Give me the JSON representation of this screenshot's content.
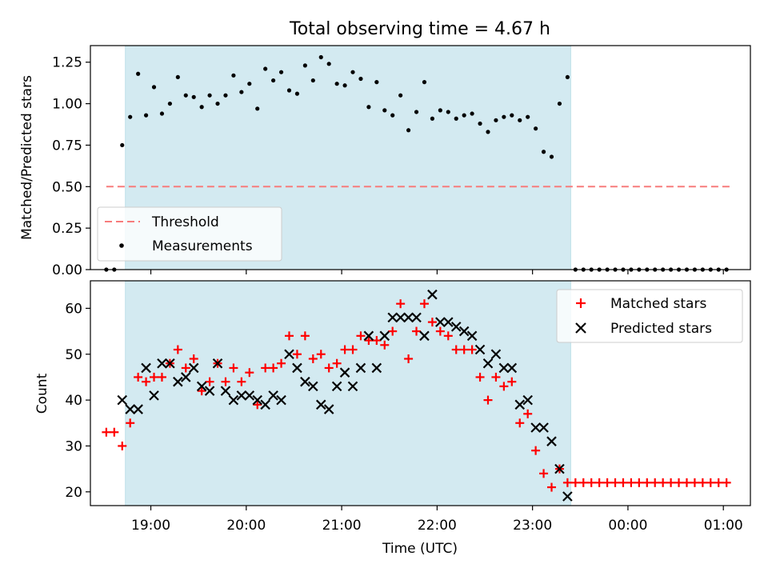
{
  "chart_data": [
    {
      "type": "scatter",
      "title": "Total observing time = 4.67 h",
      "ylabel": "Matched/Predicted stars",
      "xlabel": "",
      "ylim": [
        0,
        1.35
      ],
      "xlim": [
        "18:22",
        "01:17"
      ],
      "yticks": [
        "0.00",
        "0.25",
        "0.50",
        "0.75",
        "1.00",
        "1.25"
      ],
      "shaded_region": [
        "18:44",
        "23:24"
      ],
      "shade_color": "#d3eaf1",
      "threshold": {
        "name": "Threshold",
        "y": 0.5,
        "x": [
          "18:32",
          "01:05"
        ],
        "color": "#f77c7c"
      },
      "legend_position": "lower-left",
      "legend": [
        "Threshold",
        "Measurements"
      ],
      "series": [
        {
          "name": "Measurements",
          "marker": "dot",
          "color": "#000000",
          "x": [
            "18:32",
            "18:37",
            "18:42",
            "18:47",
            "18:52",
            "18:57",
            "19:02",
            "19:07",
            "19:12",
            "19:17",
            "19:22",
            "19:27",
            "19:32",
            "19:37",
            "19:42",
            "19:47",
            "19:52",
            "19:57",
            "20:02",
            "20:07",
            "20:12",
            "20:17",
            "20:22",
            "20:27",
            "20:32",
            "20:37",
            "20:42",
            "20:47",
            "20:52",
            "20:57",
            "21:02",
            "21:07",
            "21:12",
            "21:17",
            "21:22",
            "21:27",
            "21:32",
            "21:37",
            "21:42",
            "21:47",
            "21:52",
            "21:57",
            "22:02",
            "22:07",
            "22:12",
            "22:17",
            "22:22",
            "22:27",
            "22:32",
            "22:37",
            "22:42",
            "22:47",
            "22:52",
            "22:57",
            "23:02",
            "23:07",
            "23:12",
            "23:17",
            "23:22",
            "23:27",
            "23:32",
            "23:37",
            "23:42",
            "23:47",
            "23:52",
            "23:57",
            "00:02",
            "00:07",
            "00:12",
            "00:17",
            "00:22",
            "00:27",
            "00:32",
            "00:37",
            "00:42",
            "00:47",
            "00:52",
            "00:57",
            "01:02"
          ],
          "y": [
            0.0,
            0.0,
            0.75,
            0.92,
            1.18,
            0.93,
            1.1,
            0.94,
            1.0,
            1.16,
            1.05,
            1.04,
            0.98,
            1.05,
            1.0,
            1.05,
            1.17,
            1.07,
            1.12,
            0.97,
            1.21,
            1.14,
            1.19,
            1.08,
            1.06,
            1.23,
            1.14,
            1.28,
            1.24,
            1.12,
            1.11,
            1.19,
            1.15,
            0.98,
            1.13,
            0.96,
            0.93,
            1.05,
            0.84,
            0.95,
            1.13,
            0.91,
            0.96,
            0.95,
            0.91,
            0.93,
            0.94,
            0.88,
            0.83,
            0.9,
            0.92,
            0.93,
            0.9,
            0.92,
            0.85,
            0.71,
            0.68,
            1.0,
            1.16,
            0.0,
            0.0,
            0.0,
            0.0,
            0.0,
            0.0,
            0.0,
            0.0,
            0.0,
            0.0,
            0.0,
            0.0,
            0.0,
            0.0,
            0.0,
            0.0,
            0.0,
            0.0,
            0.0,
            0.0
          ]
        }
      ]
    },
    {
      "type": "scatter",
      "title": "",
      "ylabel": "Count",
      "xlabel": "Time (UTC)",
      "ylim": [
        17,
        66
      ],
      "xlim": [
        "18:22",
        "01:17"
      ],
      "yticks": [
        "20",
        "30",
        "40",
        "50",
        "60"
      ],
      "xticks": [
        "19:00",
        "20:00",
        "21:00",
        "22:00",
        "23:00",
        "00:00",
        "01:00"
      ],
      "shaded_region": [
        "18:44",
        "23:24"
      ],
      "shade_color": "#d3eaf1",
      "legend_position": "upper-right",
      "legend": [
        "Matched stars",
        "Predicted stars"
      ],
      "series": [
        {
          "name": "Matched stars",
          "marker": "plus",
          "color": "#ff0000",
          "x": [
            "18:32",
            "18:37",
            "18:42",
            "18:47",
            "18:52",
            "18:57",
            "19:02",
            "19:07",
            "19:12",
            "19:17",
            "19:22",
            "19:27",
            "19:32",
            "19:37",
            "19:42",
            "19:47",
            "19:52",
            "19:57",
            "20:02",
            "20:07",
            "20:12",
            "20:17",
            "20:22",
            "20:27",
            "20:32",
            "20:37",
            "20:42",
            "20:47",
            "20:52",
            "20:57",
            "21:02",
            "21:07",
            "21:12",
            "21:17",
            "21:22",
            "21:27",
            "21:32",
            "21:37",
            "21:42",
            "21:47",
            "21:52",
            "21:57",
            "22:02",
            "22:07",
            "22:12",
            "22:17",
            "22:22",
            "22:27",
            "22:32",
            "22:37",
            "22:42",
            "22:47",
            "22:52",
            "22:57",
            "23:02",
            "23:07",
            "23:12",
            "23:17",
            "23:22",
            "23:27",
            "23:32",
            "23:37",
            "23:42",
            "23:47",
            "23:52",
            "23:57",
            "00:02",
            "00:07",
            "00:12",
            "00:17",
            "00:22",
            "00:27",
            "00:32",
            "00:37",
            "00:42",
            "00:47",
            "00:52",
            "00:57",
            "01:02"
          ],
          "y": [
            33,
            33,
            30,
            35,
            45,
            44,
            45,
            45,
            48,
            51,
            47,
            49,
            42,
            44,
            48,
            44,
            47,
            44,
            46,
            39,
            47,
            47,
            48,
            54,
            50,
            54,
            49,
            50,
            47,
            48,
            51,
            51,
            54,
            53,
            53,
            52,
            55,
            61,
            49,
            55,
            61,
            57,
            55,
            54,
            51,
            51,
            51,
            45,
            40,
            45,
            43,
            44,
            35,
            37,
            29,
            24,
            21,
            25,
            22,
            22,
            22,
            22,
            22,
            22,
            22,
            22,
            22,
            22,
            22,
            22,
            22,
            22,
            22,
            22,
            22,
            22,
            22,
            22,
            22
          ]
        },
        {
          "name": "Predicted stars",
          "marker": "x",
          "color": "#000000",
          "x": [
            "18:42",
            "18:47",
            "18:52",
            "18:57",
            "19:02",
            "19:07",
            "19:12",
            "19:17",
            "19:22",
            "19:27",
            "19:32",
            "19:37",
            "19:42",
            "19:47",
            "19:52",
            "19:57",
            "20:02",
            "20:07",
            "20:12",
            "20:17",
            "20:22",
            "20:27",
            "20:32",
            "20:37",
            "20:42",
            "20:47",
            "20:52",
            "20:57",
            "21:02",
            "21:07",
            "21:12",
            "21:17",
            "21:22",
            "21:27",
            "21:32",
            "21:37",
            "21:42",
            "21:47",
            "21:52",
            "21:57",
            "22:02",
            "22:07",
            "22:12",
            "22:17",
            "22:22",
            "22:27",
            "22:32",
            "22:37",
            "22:42",
            "22:47",
            "22:52",
            "22:57",
            "23:02",
            "23:07",
            "23:12",
            "23:17",
            "23:22"
          ],
          "y": [
            40,
            38,
            38,
            47,
            41,
            48,
            48,
            44,
            45,
            47,
            43,
            42,
            48,
            42,
            40,
            41,
            41,
            40,
            39,
            41,
            40,
            50,
            47,
            44,
            43,
            39,
            38,
            43,
            46,
            43,
            47,
            54,
            47,
            54,
            58,
            58,
            58,
            58,
            54,
            63,
            57,
            57,
            56,
            55,
            54,
            51,
            48,
            50,
            47,
            47,
            39,
            40,
            34,
            34,
            31,
            25,
            19
          ]
        }
      ]
    }
  ]
}
